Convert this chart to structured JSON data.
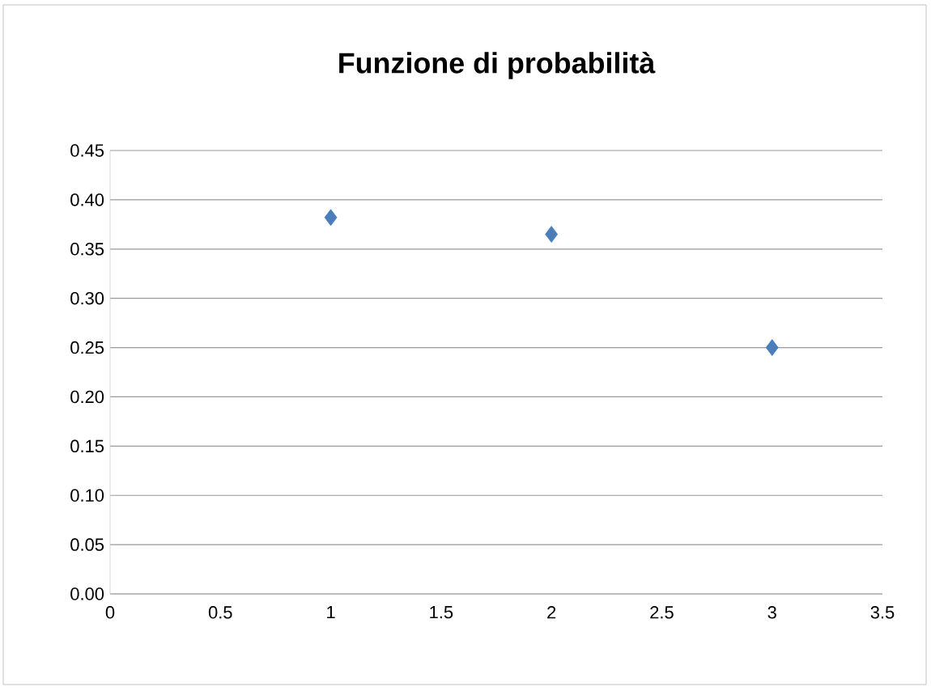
{
  "chart_data": {
    "type": "scatter",
    "title": "Funzione di probabilità",
    "x": [
      1,
      2,
      3
    ],
    "values": [
      0.382,
      0.365,
      0.25
    ],
    "color": "#4a7ebb",
    "marker": "diamond",
    "xlim": [
      0,
      3.5
    ],
    "xticks": [
      0,
      0.5,
      1,
      1.5,
      2,
      2.5,
      3,
      3.5
    ],
    "ylim": [
      0,
      0.45
    ],
    "yticks": [
      {
        "value": 0,
        "label": "0.00"
      },
      {
        "value": 0.05,
        "label": "0.05"
      },
      {
        "value": 0.1,
        "label": "0.10"
      },
      {
        "value": 0.15,
        "label": "0.15"
      },
      {
        "value": 0.2,
        "label": "0.20"
      },
      {
        "value": 0.25,
        "label": "0.25"
      },
      {
        "value": 0.3,
        "label": "0.30"
      },
      {
        "value": 0.35,
        "label": "0.35"
      },
      {
        "value": 0.4,
        "label": "0.40"
      },
      {
        "value": 0.45,
        "label": "0.45"
      }
    ],
    "grid": "y"
  }
}
